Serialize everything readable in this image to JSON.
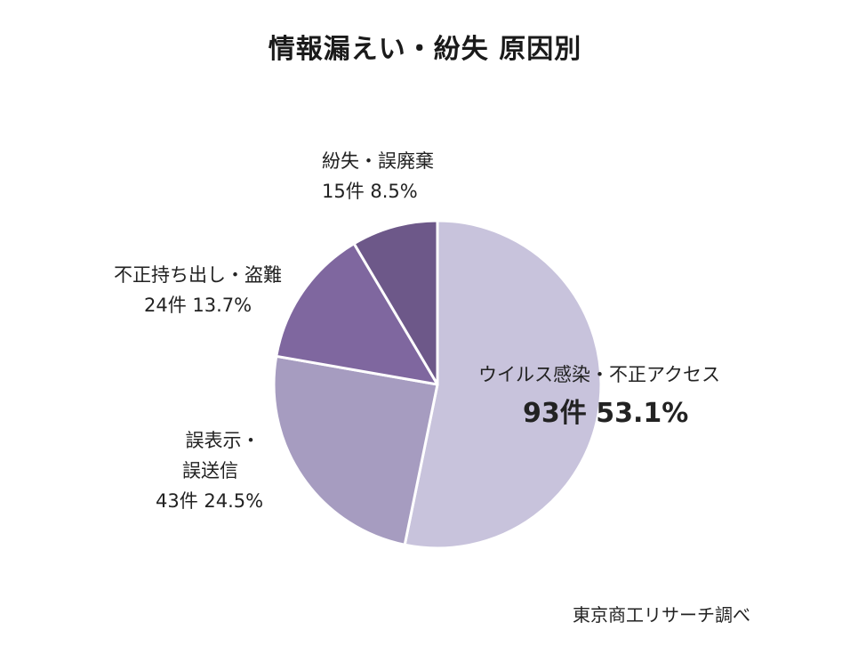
{
  "chart_data": {
    "type": "pie",
    "title": "情報漏えい・紛失 原因別",
    "slices": [
      {
        "name": "ウイルス感染・不正アクセス",
        "count_label": "93件",
        "percent_label": "53.1%",
        "value": 53.1,
        "color": "#c8c3dc"
      },
      {
        "name": "誤表示・誤送信",
        "count_label": "43件",
        "percent_label": "24.5%",
        "value": 24.5,
        "color": "#a69cc0"
      },
      {
        "name": "不正持ち出し・盗難",
        "count_label": "24件",
        "percent_label": "13.7%",
        "value": 13.7,
        "color": "#7f679f"
      },
      {
        "name": "紛失・誤廃棄",
        "count_label": "15件",
        "percent_label": "8.5%",
        "value": 8.5,
        "color": "#6d5889"
      }
    ],
    "start_angle_deg": 0,
    "direction": "clockwise"
  },
  "labels": {
    "s0_line1": "ウイルス感染・不正アクセス",
    "s0_line2": "93件 53.1%",
    "s1_line1": "誤表示・",
    "s1_line2": "誤送信",
    "s1_line3": "43件  24.5%",
    "s2_line1": "不正持ち出し・盗難",
    "s2_line2": "24件  13.7%",
    "s3_line1": "紛失・誤廃棄",
    "s3_line2": "15件  8.5%"
  },
  "source": "東京商工リサーチ調べ"
}
